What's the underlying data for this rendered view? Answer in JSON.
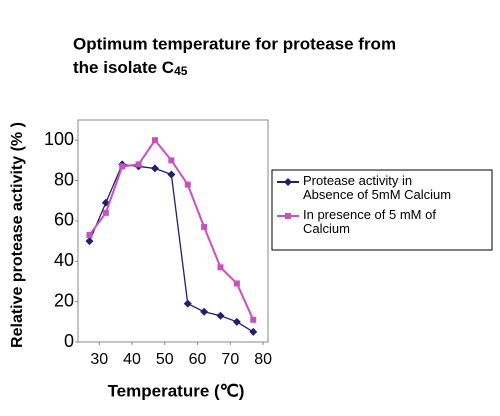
{
  "chart_data": {
    "type": "line",
    "title": [
      "Optimum temperature for protease from",
      "the isolate C"
    ],
    "title_subscript": "45",
    "x_label": "Temperature (℃)",
    "y_label": "Relative protease activity (% )",
    "x": [
      27,
      32,
      37,
      42,
      47,
      52,
      57,
      62,
      67,
      72,
      77
    ],
    "series": [
      {
        "name": "Protease activity in Absence of 5mM Calcium",
        "color": "#1f2070",
        "marker": "diamond",
        "values": [
          50,
          69,
          88,
          87,
          86,
          83,
          19,
          15,
          13,
          10,
          5
        ]
      },
      {
        "name": "In presence of 5 mM of Calcium",
        "color": "#cc4fbf",
        "marker": "square",
        "values": [
          53,
          64,
          87,
          88,
          100,
          90,
          78,
          57,
          37,
          29,
          11
        ]
      }
    ],
    "xlim": [
      23.5,
      81.5
    ],
    "xticks": [
      30,
      40,
      50,
      60,
      70,
      80
    ],
    "ylim": [
      0,
      110
    ],
    "yticks": [
      0,
      20,
      40,
      60,
      80,
      100
    ],
    "legend": "right"
  }
}
